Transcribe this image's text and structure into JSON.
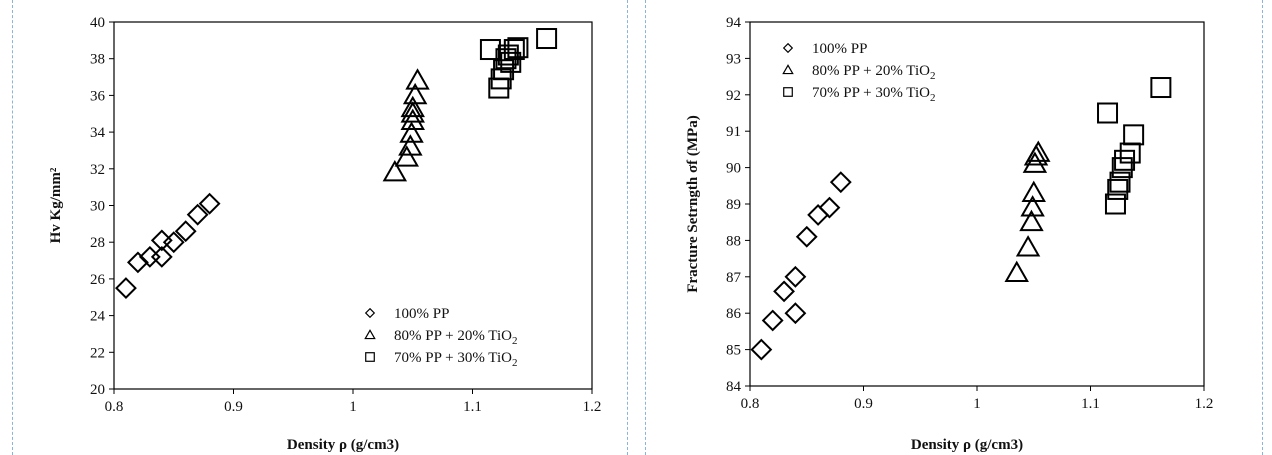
{
  "chart_data": [
    {
      "type": "scatter",
      "title": "",
      "xlabel": "Density ρ (g/cm3)",
      "ylabel": "Hv Kg/mm²",
      "xlim": [
        0.8,
        1.2
      ],
      "ylim": [
        20,
        40
      ],
      "xticks": [
        "0.8",
        "0.9",
        "1",
        "1.1",
        "1.2"
      ],
      "yticks": [
        "20",
        "22",
        "24",
        "26",
        "28",
        "30",
        "32",
        "34",
        "36",
        "38",
        "40"
      ],
      "legend_position": "bottom-right",
      "grid": false,
      "series": [
        {
          "name": "100% PP",
          "marker": "diamond",
          "x": [
            0.81,
            0.82,
            0.83,
            0.84,
            0.84,
            0.85,
            0.86,
            0.87,
            0.88
          ],
          "y": [
            25.5,
            26.9,
            27.2,
            28.1,
            27.2,
            28.0,
            28.6,
            29.5,
            30.1
          ]
        },
        {
          "name": "80% PP + 20% TiO2",
          "marker": "triangle",
          "x": [
            1.035,
            1.045,
            1.048,
            1.049,
            1.05,
            1.05,
            1.05,
            1.052,
            1.054
          ],
          "y": [
            31.8,
            32.6,
            33.2,
            33.9,
            34.6,
            35.0,
            35.3,
            36.0,
            36.8
          ]
        },
        {
          "name": "70% PP + 30% TiO2",
          "marker": "square",
          "x": [
            1.115,
            1.122,
            1.124,
            1.126,
            1.128,
            1.13,
            1.132,
            1.135,
            1.138,
            1.162
          ],
          "y": [
            38.5,
            36.4,
            36.9,
            37.4,
            38.0,
            38.2,
            37.8,
            38.5,
            38.6,
            39.1
          ]
        }
      ]
    },
    {
      "type": "scatter",
      "title": "",
      "xlabel": "Density ρ (g/cm3)",
      "ylabel": "Fracture Setrngth σf (MPa)",
      "xlim": [
        0.8,
        1.2
      ],
      "ylim": [
        84,
        94
      ],
      "xticks": [
        "0.8",
        "0.9",
        "1",
        "1.1",
        "1.2"
      ],
      "yticks": [
        "84",
        "85",
        "86",
        "87",
        "88",
        "89",
        "90",
        "91",
        "92",
        "93",
        "94"
      ],
      "legend_position": "top-left",
      "grid": false,
      "series": [
        {
          "name": "100% PP",
          "marker": "diamond",
          "x": [
            0.81,
            0.82,
            0.83,
            0.84,
            0.84,
            0.85,
            0.86,
            0.87,
            0.88
          ],
          "y": [
            85.0,
            85.8,
            86.6,
            87.0,
            86.0,
            88.1,
            88.7,
            88.9,
            89.6
          ]
        },
        {
          "name": "80% PP + 20% TiO2",
          "marker": "triangle",
          "x": [
            1.035,
            1.045,
            1.048,
            1.049,
            1.05,
            1.051,
            1.052,
            1.054
          ],
          "y": [
            87.1,
            87.8,
            88.5,
            88.9,
            89.3,
            90.1,
            90.3,
            90.4
          ]
        },
        {
          "name": "70% PP + 30% TiO2",
          "marker": "square",
          "x": [
            1.115,
            1.122,
            1.124,
            1.126,
            1.128,
            1.13,
            1.135,
            1.138,
            1.162
          ],
          "y": [
            91.5,
            89.0,
            89.4,
            89.6,
            90.0,
            90.2,
            90.4,
            90.9,
            92.2
          ]
        }
      ]
    }
  ],
  "legend_labels": [
    {
      "pre": "100% PP",
      "sub": "",
      "post": ""
    },
    {
      "pre": "80% PP + 20% TiO",
      "sub": "2",
      "post": ""
    },
    {
      "pre": "70% PP + 30% TiO",
      "sub": "2",
      "post": ""
    }
  ],
  "colors": {
    "marker_stroke": "#000000",
    "divider": "#8ab4d8"
  }
}
